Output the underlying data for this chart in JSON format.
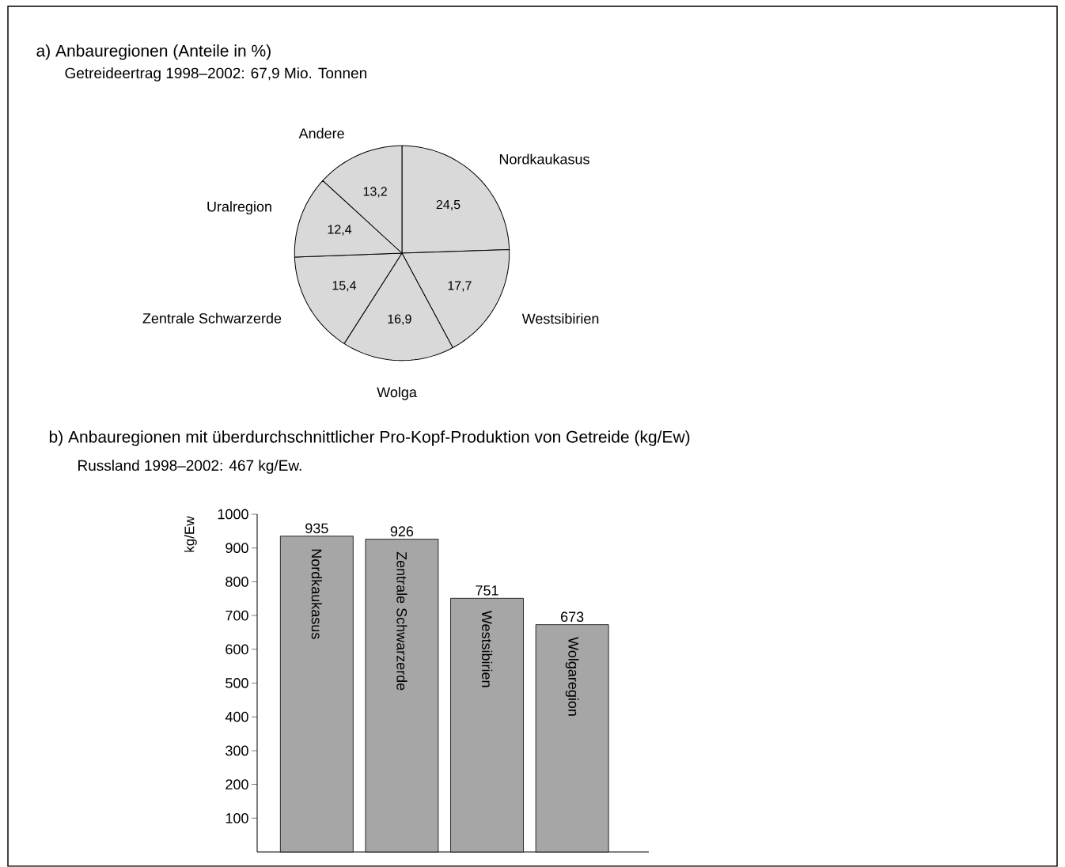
{
  "chart_data": [
    {
      "type": "pie",
      "title": "a) Anbauregionen (Anteile in %)",
      "subtitle": "Getreideertrag 1998–2002: 67,9 Mio. Tonnen",
      "categories": [
        "Nordkaukasus",
        "Westsibirien",
        "Wolga",
        "Zentrale Schwarzerde",
        "Uralregion",
        "Andere"
      ],
      "values": [
        24.5,
        17.7,
        16.9,
        15.4,
        12.4,
        13.2
      ],
      "value_labels": [
        "24,5",
        "17,7",
        "16,9",
        "15,4",
        "12,4",
        "13,2"
      ],
      "colors": [
        "#d9d9d9",
        "#d9d9d9",
        "#d9d9d9",
        "#d9d9d9",
        "#d9d9d9",
        "#d9d9d9"
      ]
    },
    {
      "type": "bar",
      "title": "b) Anbauregionen mit überdurchschnittlicher Pro-Kopf-Produktion von Getreide (kg/Ew)",
      "subtitle": "Russland 1998–2002: 467 kg/Ew.",
      "ylabel": "kg/Ew",
      "categories": [
        "Nordkaukasus",
        "Zentrale Schwarzerde",
        "Westsibirien",
        "Wolgaregion"
      ],
      "values": [
        935,
        926,
        751,
        673
      ],
      "color": "#a6a6a6",
      "data_labels": true,
      "ylim": [
        0,
        1000
      ],
      "yticks": [
        100,
        200,
        300,
        400,
        500,
        600,
        700,
        800,
        900,
        1000
      ]
    }
  ]
}
